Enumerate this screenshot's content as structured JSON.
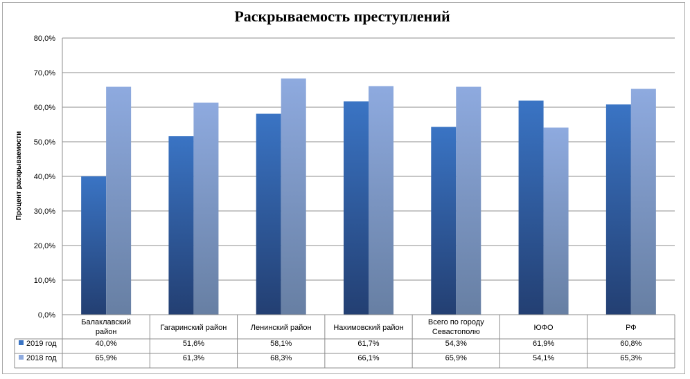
{
  "chart_data": {
    "type": "bar",
    "title": "Раскрываемость преступлений",
    "xlabel": "",
    "ylabel": "Процент раскрываемости",
    "ylim": [
      0,
      80
    ],
    "yticks": [
      "0,0%",
      "10,0%",
      "20,0%",
      "30,0%",
      "40,0%",
      "50,0%",
      "60,0%",
      "70,0%",
      "80,0%"
    ],
    "categories": [
      [
        "Балаклавский",
        "район"
      ],
      [
        "Гагаринский район"
      ],
      [
        "Ленинский район"
      ],
      [
        "Нахимовский район"
      ],
      [
        "Всего по городу",
        "Севастополю"
      ],
      [
        "ЮФО"
      ],
      [
        "РФ"
      ]
    ],
    "series": [
      {
        "name": "2019 год",
        "values": [
          40.0,
          51.6,
          58.1,
          61.7,
          54.3,
          61.9,
          60.8
        ],
        "labels": [
          "40,0%",
          "51,6%",
          "58,1%",
          "61,7%",
          "54,3%",
          "61,9%",
          "60,8%"
        ],
        "color_top": "#3a74c4",
        "color_bottom": "#233f72"
      },
      {
        "name": "2018 год",
        "values": [
          65.9,
          61.3,
          68.3,
          66.1,
          65.9,
          54.1,
          65.3
        ],
        "labels": [
          "65,9%",
          "61,3%",
          "68,3%",
          "66,1%",
          "65,9%",
          "54,1%",
          "65,3%"
        ],
        "color_top": "#8eaadf",
        "color_bottom": "#677fa3"
      }
    ],
    "grid": true,
    "legend": "data-table"
  }
}
